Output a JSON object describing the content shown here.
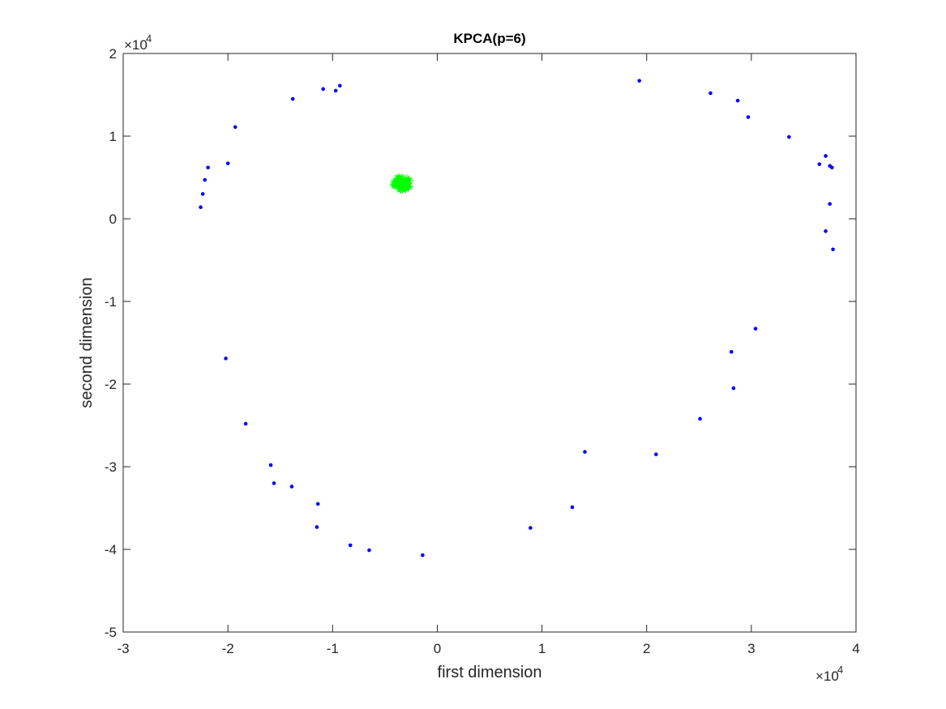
{
  "chart_data": {
    "type": "scatter",
    "title": "KPCA(p=6)",
    "xlabel": "first dimension",
    "ylabel": "second dimension",
    "xlim": [
      -30000,
      40000
    ],
    "ylim": [
      -50000,
      20000
    ],
    "x_ticks": [
      -30000,
      -20000,
      -10000,
      0,
      10000,
      20000,
      30000,
      40000
    ],
    "y_ticks": [
      -50000,
      -40000,
      -30000,
      -20000,
      -10000,
      0,
      10000,
      20000
    ],
    "x_tick_labels": [
      "-3",
      "-2",
      "-1",
      "0",
      "1",
      "2",
      "3",
      "4"
    ],
    "y_tick_labels": [
      "-5",
      "-4",
      "-3",
      "-2",
      "-1",
      "0",
      "1",
      "2"
    ],
    "x_exponent": {
      "base": "×10",
      "power": "4"
    },
    "y_exponent": {
      "base": "×10",
      "power": "4"
    },
    "grid": false,
    "box": true,
    "series": [
      {
        "marker": "dot",
        "color": "#0000ff",
        "points": [
          [
            -22600,
            1400
          ],
          [
            -22400,
            3000
          ],
          [
            -22200,
            4700
          ],
          [
            -21900,
            6200
          ],
          [
            -20000,
            6700
          ],
          [
            -19300,
            11100
          ],
          [
            -13800,
            14500
          ],
          [
            -10900,
            15700
          ],
          [
            -9700,
            15500
          ],
          [
            -9300,
            16100
          ],
          [
            19300,
            16700
          ],
          [
            26100,
            15200
          ],
          [
            28700,
            14300
          ],
          [
            29700,
            12300
          ],
          [
            33600,
            9900
          ],
          [
            36500,
            6600
          ],
          [
            37100,
            7600
          ],
          [
            37500,
            6400
          ],
          [
            37700,
            6200
          ],
          [
            37500,
            1800
          ],
          [
            37100,
            -1500
          ],
          [
            37800,
            -3700
          ],
          [
            30400,
            -13300
          ],
          [
            28100,
            -16100
          ],
          [
            28300,
            -20500
          ],
          [
            25100,
            -24200
          ],
          [
            20900,
            -28500
          ],
          [
            14100,
            -28200
          ],
          [
            12900,
            -34900
          ],
          [
            8900,
            -37400
          ],
          [
            -1400,
            -40700
          ],
          [
            -6500,
            -40100
          ],
          [
            -8300,
            -39500
          ],
          [
            -11500,
            -37300
          ],
          [
            -11400,
            -34500
          ],
          [
            -13900,
            -32400
          ],
          [
            -15600,
            -32000
          ],
          [
            -15900,
            -29800
          ],
          [
            -18300,
            -24800
          ],
          [
            -20200,
            -16900
          ]
        ]
      },
      {
        "marker": "star",
        "color": "#00ff00",
        "center": [
          -3400,
          4300
        ]
      }
    ]
  }
}
